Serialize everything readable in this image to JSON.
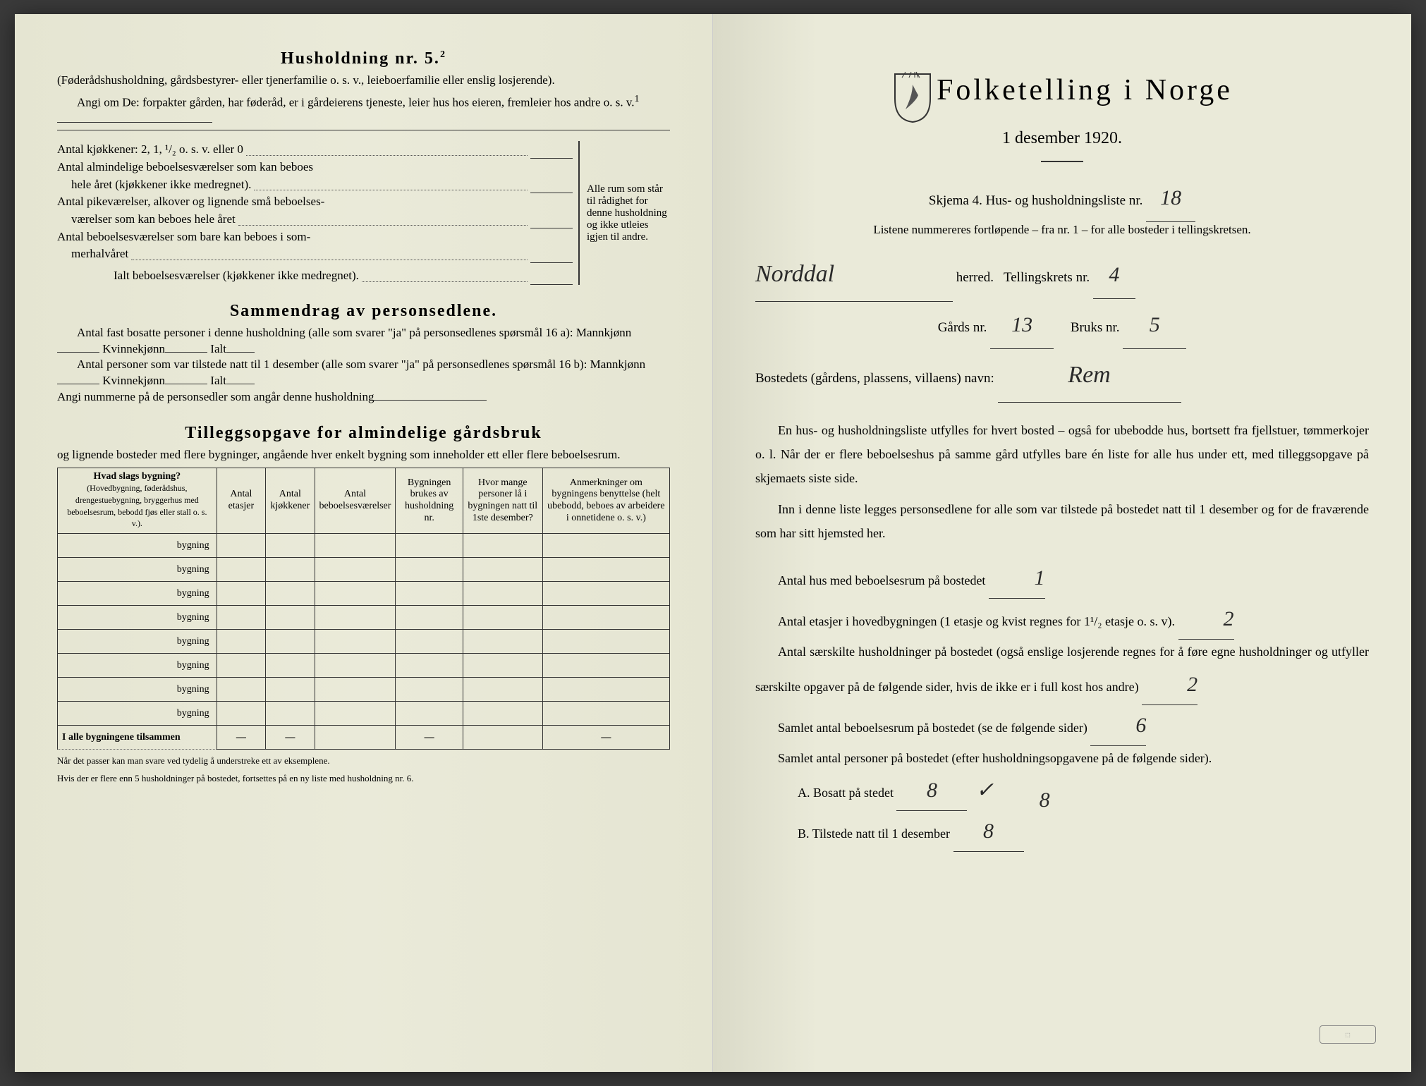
{
  "left": {
    "h5_title": "Husholdning nr. 5.",
    "h5_sup": "2",
    "h5_paren": "(Føderådshusholdning, gårdsbestyrer- eller tjenerfamilie o. s. v., leieboerfamilie eller enslig losjerende).",
    "h5_angi": "Angi om De: forpakter gården, har føderåd, er i gårdeierens tjeneste, leier hus hos eieren, fremleier hos andre o. s. v.",
    "h5_angi_sup": "1",
    "rooms": {
      "r1": "Antal kjøkkener: 2, 1, ¹/₂ o. s. v. eller 0",
      "r2a": "Antal almindelige beboelsesværelser som kan beboes",
      "r2b": "hele året (kjøkkener ikke medregnet).",
      "r3a": "Antal pikeværelser, alkover og lignende små beboelses-",
      "r3b": "værelser som kan beboes hele året",
      "r4a": "Antal beboelsesværelser som bare kan beboes i som-",
      "r4b": "merhalvåret",
      "total": "Ialt beboelsesværelser  (kjøkkener ikke medregnet).",
      "bracket": "Alle rum som står til rådighet for denne husholdning og ikke utleies igjen til andre."
    },
    "samm_title": "Sammendrag av personsedlene.",
    "samm_l1": "Antal fast bosatte personer i denne husholdning (alle som svarer \"ja\" på personsedlenes spørsmål 16 a): Mannkjønn",
    "samm_kv": "Kvinnekjønn",
    "samm_ialt": "Ialt",
    "samm_l2": "Antal personer som var tilstede natt til 1 desember (alle som svarer \"ja\" på personsedlenes spørsmål 16 b): Mannkjønn",
    "samm_l3": "Angi nummerne på de personsedler som angår denne husholdning",
    "till_title": "Tilleggsopgave for almindelige gårdsbruk",
    "till_sub": "og lignende bosteder med flere bygninger, angående hver enkelt bygning som inneholder ett eller flere beboelsesrum.",
    "tbl": {
      "h1a": "Hvad slags bygning?",
      "h1b": "(Hovedbygning, føderådshus, drengestuebygning, bryggerhus med beboelsesrum, bebodd fjøs eller stall o. s. v.).",
      "h2": "Antal etasjer",
      "h3": "Antal kjøkkener",
      "h4": "Antal beboelsesværelser",
      "h5": "Bygningen brukes av husholdning nr.",
      "h6": "Hvor mange personer lå i bygningen natt til 1ste desember?",
      "h7": "Anmerkninger om bygningens benyttelse (helt ubebodd, beboes av arbeidere i onnetidene o. s. v.)",
      "row_label": "bygning",
      "total_label": "I alle bygningene tilsammen",
      "dash": "—"
    },
    "fn1": "Når det passer kan man svare ved tydelig å understreke ett av eksemplene.",
    "fn2": "Hvis der er flere enn 5 husholdninger på bostedet, fortsettes på en ny liste med husholdning nr. 6."
  },
  "right": {
    "title": "Folketelling i Norge",
    "date": "1 desember 1920.",
    "skjema": "Skjema 4. Hus- og husholdningsliste nr.",
    "liste_nr": "18",
    "listene": "Listene nummereres fortløpende – fra nr. 1 – for alle bosteder i tellingskretsen.",
    "herred_val": "Norddal",
    "herred_lbl": "herred.",
    "krets_lbl": "Tellingskrets nr.",
    "krets_val": "4",
    "gard_lbl": "Gårds nr.",
    "gard_val": "13",
    "bruk_lbl": "Bruks nr.",
    "bruk_val": "5",
    "bosted_lbl": "Bostedets (gårdens, plassens, villaens) navn:",
    "bosted_val": "Rem",
    "p1": "En hus- og husholdningsliste utfylles for hvert bosted – også for ubebodde hus, bortsett fra fjellstuer, tømmerkojer o. l. Når der er flere beboelseshus på samme gård utfylles bare én liste for alle hus under ett, med tilleggsopgave på skjemaets siste side.",
    "p2": "Inn i denne liste legges personsedlene for alle som var tilstede på bostedet natt til 1 desember og for de fraværende som har sitt hjemsted her.",
    "q1": "Antal hus med beboelsesrum på bostedet",
    "q1_val": "1",
    "q2a": "Antal etasjer i hovedbygningen (1 etasje og kvist regnes for 1¹/₂ etasje o. s. v).",
    "q2_val": "2",
    "q3": "Antal særskilte husholdninger på bostedet (også enslige losjerende regnes for å føre egne husholdninger og utfyller særskilte opgaver på de følgende sider, hvis de ikke er i full kost hos andre)",
    "q3_val": "2",
    "q4": "Samlet antal beboelsesrum på bostedet (se de følgende sider)",
    "q4_val": "6",
    "q5": "Samlet antal personer på bostedet (efter husholdningsopgavene på de følgende sider).",
    "qA": "A. Bosatt på stedet",
    "qA_val": "8",
    "qA_mark": "✓",
    "qB": "B. Tilstede natt til 1 desember",
    "qB_val": "8",
    "qB_extra": "8"
  }
}
